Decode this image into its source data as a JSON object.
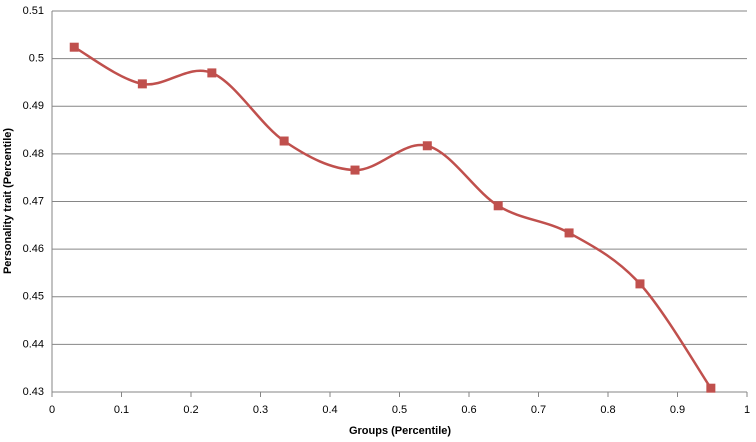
{
  "chart_data": {
    "type": "line",
    "x_label": "Groups (Percentile)",
    "y_label": "Personality trait (Percentile)",
    "x": [
      0.032,
      0.13,
      0.23,
      0.334,
      0.436,
      0.54,
      0.642,
      0.744,
      0.846,
      0.948
    ],
    "series": [
      {
        "name": "Personality trait",
        "color": "#c0504d",
        "values": [
          0.5024,
          0.4947,
          0.497,
          0.4827,
          0.4766,
          0.4817,
          0.4691,
          0.4634,
          0.4527,
          0.4308
        ]
      }
    ],
    "xlim": [
      0,
      1
    ],
    "xticks": [
      0,
      0.1,
      0.2,
      0.3,
      0.4,
      0.5,
      0.6,
      0.7,
      0.8,
      0.9,
      1
    ],
    "ylim": [
      0.43,
      0.51
    ],
    "yticks": [
      0.43,
      0.44,
      0.45,
      0.46,
      0.47,
      0.48,
      0.49,
      0.5,
      0.51
    ],
    "grid": true,
    "smooth": true
  }
}
